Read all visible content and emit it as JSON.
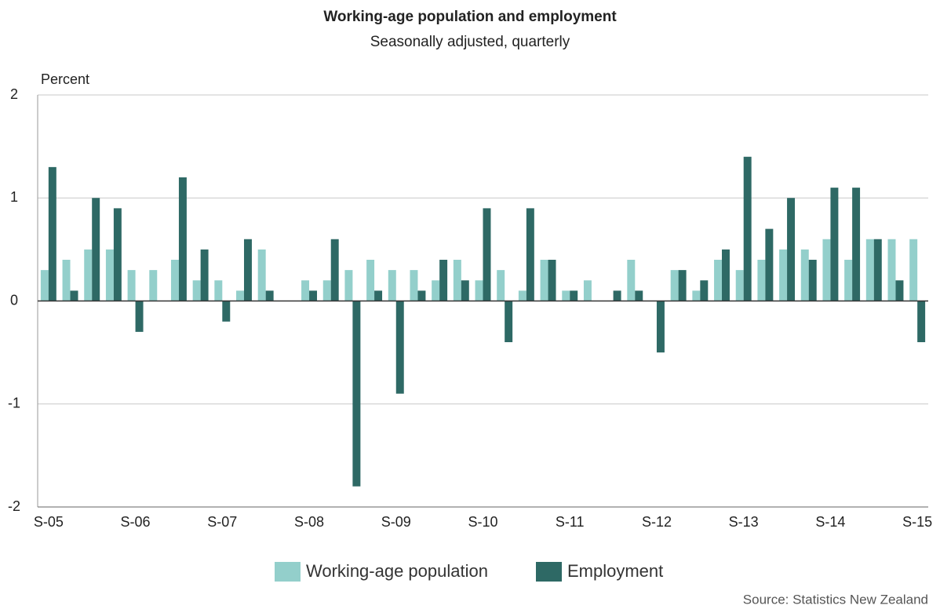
{
  "chart_data": {
    "type": "bar",
    "title": "Working-age population and employment",
    "subtitle": "Seasonally adjusted, quarterly",
    "y_label": "Percent",
    "source": "Source: Statistics New Zealand",
    "categories": [
      "S-05",
      null,
      null,
      null,
      "S-06",
      null,
      null,
      null,
      "S-07",
      null,
      null,
      null,
      "S-08",
      null,
      null,
      null,
      "S-09",
      null,
      null,
      null,
      "S-10",
      null,
      null,
      null,
      "S-11",
      null,
      null,
      null,
      "S-12",
      null,
      null,
      null,
      "S-13",
      null,
      null,
      null,
      "S-14",
      null,
      null,
      null,
      "S-15"
    ],
    "series": [
      {
        "name": "Working-age population",
        "color": "#93cfcb",
        "values": [
          0.3,
          0.4,
          0.5,
          0.5,
          0.3,
          0.3,
          0.4,
          0.2,
          0.2,
          0.1,
          0.5,
          0,
          0.2,
          0.2,
          0.3,
          0.4,
          0.3,
          0.3,
          0.2,
          0.4,
          0.2,
          0.3,
          0.1,
          0.4,
          0.1,
          0.2,
          0,
          0.4,
          0,
          0.3,
          0.1,
          0.4,
          0.3,
          0.4,
          0.5,
          0.5,
          0.6,
          0.4,
          0.6,
          0.6,
          0.6
        ]
      },
      {
        "name": "Employment",
        "color": "#2e6965",
        "values": [
          1.3,
          0.1,
          1.0,
          0.9,
          -0.3,
          0,
          1.2,
          0.5,
          -0.2,
          0.6,
          0.1,
          0,
          0.1,
          0.6,
          -1.8,
          0.1,
          -0.9,
          0.1,
          0.4,
          0.2,
          0.9,
          -0.4,
          0.9,
          0.4,
          0.1,
          0,
          0.1,
          0.1,
          -0.5,
          0.3,
          0.2,
          0.5,
          1.4,
          0.7,
          1.0,
          0.4,
          1.1,
          1.1,
          0.6,
          0.2,
          -0.4
        ]
      }
    ],
    "ylim": [
      -2,
      2
    ],
    "yticks": [
      -2,
      -1,
      0,
      1,
      2
    ],
    "grid": true
  }
}
